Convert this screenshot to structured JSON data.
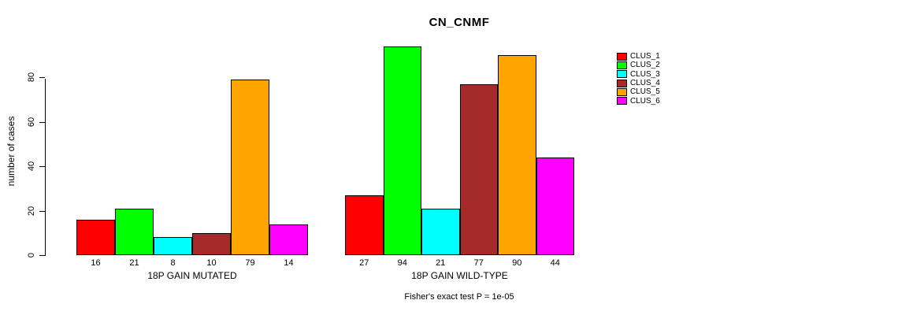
{
  "figure": {
    "title": "CN_CNMF",
    "annotation": "Fisher's exact test P = 1e-05"
  },
  "chart_data": {
    "type": "bar",
    "title": "CN_CNMF",
    "xlabel": "",
    "ylabel": "number of cases",
    "ylim": [
      0,
      94
    ],
    "yticks": [
      0,
      20,
      40,
      60,
      80
    ],
    "grid": false,
    "legend_position": "top-right",
    "bar_value_labels": true,
    "categories": [
      "18P GAIN MUTATED",
      "18P GAIN WILD-TYPE"
    ],
    "series": [
      {
        "name": "CLUS_1",
        "color": "#FF0000",
        "values": [
          16,
          27
        ]
      },
      {
        "name": "CLUS_2",
        "color": "#00FF00",
        "values": [
          21,
          94
        ]
      },
      {
        "name": "CLUS_3",
        "color": "#00FFFF",
        "values": [
          8,
          21
        ]
      },
      {
        "name": "CLUS_4",
        "color": "#A52A2A",
        "values": [
          10,
          77
        ]
      },
      {
        "name": "CLUS_5",
        "color": "#FFA500",
        "values": [
          79,
          90
        ]
      },
      {
        "name": "CLUS_6",
        "color": "#FF00FF",
        "values": [
          14,
          44
        ]
      }
    ],
    "annotation": "Fisher's exact test P = 1e-05"
  }
}
